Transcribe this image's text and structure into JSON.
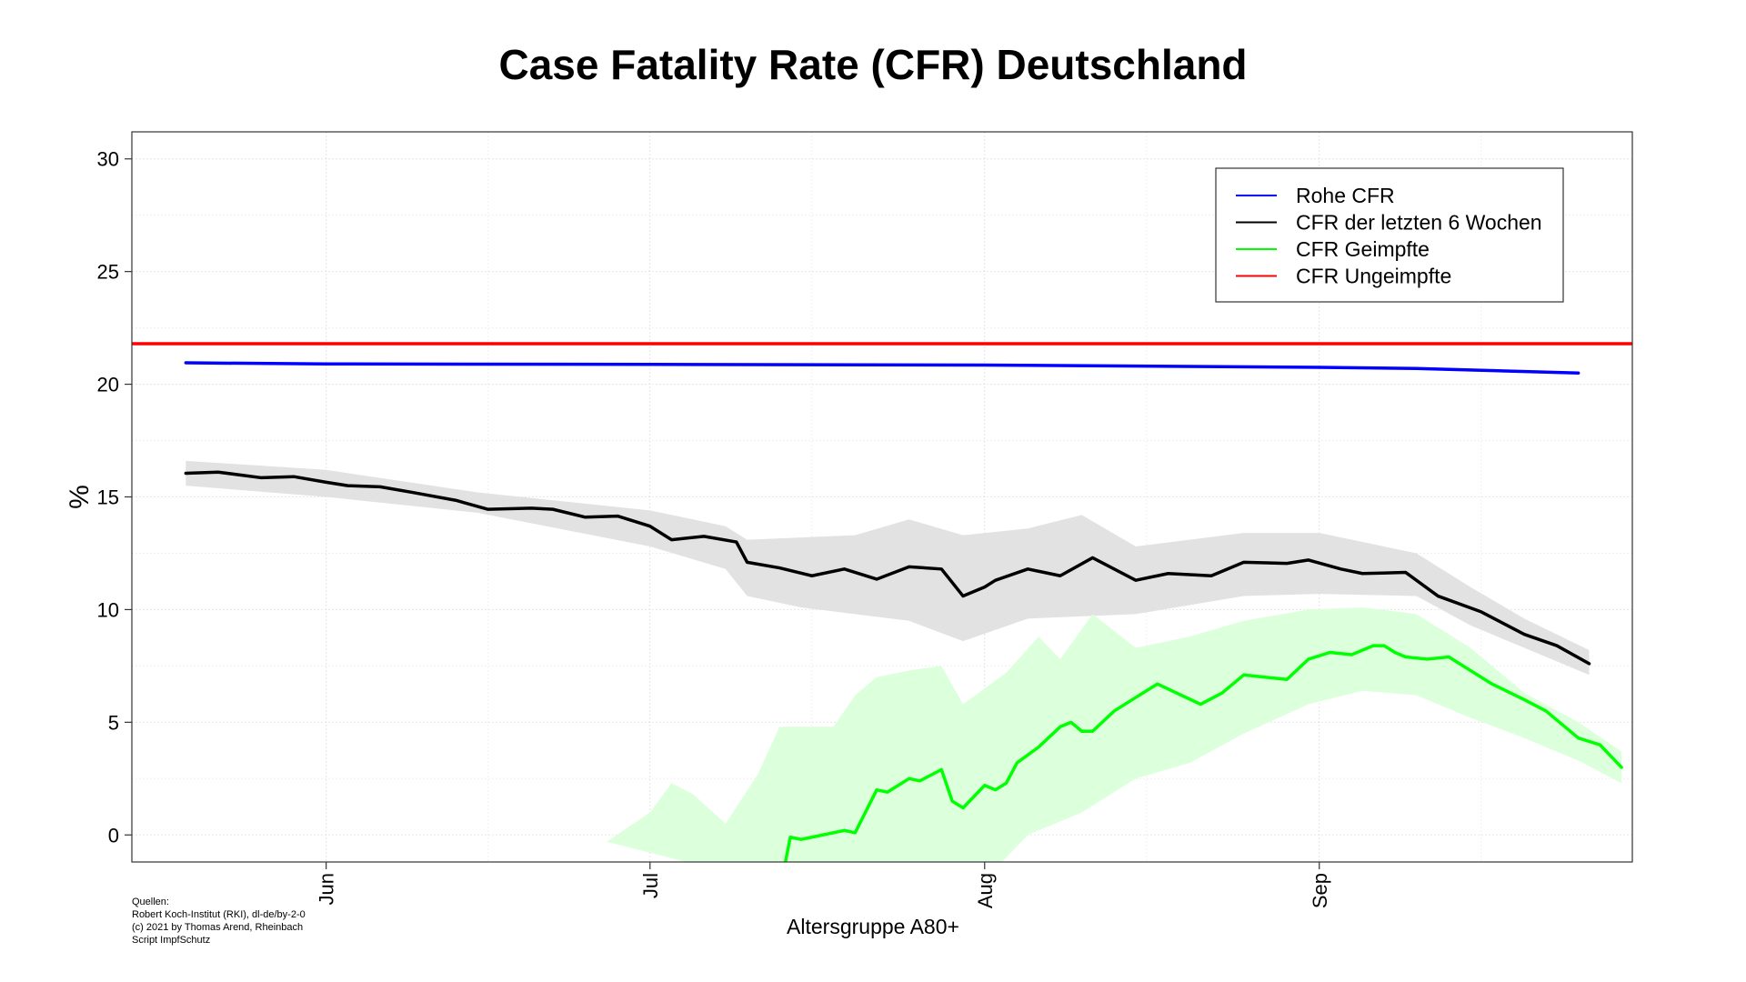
{
  "title": "Case Fatality Rate (CFR) Deutschland",
  "xlabel": "Altersgruppe A80+",
  "sources": [
    "Quellen:",
    "Robert Koch-Institut (RKI), dl-de/by-2-0",
    "(c) 2021 by Thomas Arend, Rheinbach",
    "Script ImpfSchutz"
  ],
  "chart_data": {
    "type": "line",
    "title": "Case Fatality Rate (CFR) Deutschland",
    "xlabel": "Altersgruppe A80+",
    "ylabel": "%",
    "x_axis": "date",
    "xlim": [
      "2021-05-14",
      "2021-09-30"
    ],
    "ylim": [
      -1.2,
      31.2
    ],
    "yticks": [
      0,
      5,
      10,
      15,
      20,
      25,
      30
    ],
    "xticks": [
      {
        "label": "Jun",
        "date": "2021-06-01"
      },
      {
        "label": "Jul",
        "date": "2021-07-01"
      },
      {
        "label": "Aug",
        "date": "2021-08-01"
      },
      {
        "label": "Sep",
        "date": "2021-09-01"
      }
    ],
    "grid": true,
    "legend_position": "top-right",
    "series": [
      {
        "name": "Rohe CFR",
        "color": "#0000ff",
        "points": [
          [
            "2021-05-19",
            20.95
          ],
          [
            "2021-06-01",
            20.9
          ],
          [
            "2021-07-01",
            20.88
          ],
          [
            "2021-08-01",
            20.85
          ],
          [
            "2021-09-01",
            20.75
          ],
          [
            "2021-09-10",
            20.7
          ],
          [
            "2021-09-25",
            20.5
          ]
        ]
      },
      {
        "name": "CFR der letzten 6 Wochen",
        "color": "#000000",
        "band_color": "#e2e2e2",
        "points": [
          [
            "2021-05-19",
            16.05
          ],
          [
            "2021-05-22",
            16.1
          ],
          [
            "2021-05-26",
            15.85
          ],
          [
            "2021-05-29",
            15.9
          ],
          [
            "2021-06-01",
            15.65
          ],
          [
            "2021-06-03",
            15.5
          ],
          [
            "2021-06-06",
            15.45
          ],
          [
            "2021-06-09",
            15.2
          ],
          [
            "2021-06-13",
            14.85
          ],
          [
            "2021-06-16",
            14.45
          ],
          [
            "2021-06-20",
            14.5
          ],
          [
            "2021-06-22",
            14.45
          ],
          [
            "2021-06-25",
            14.1
          ],
          [
            "2021-06-28",
            14.15
          ],
          [
            "2021-07-01",
            13.7
          ],
          [
            "2021-07-03",
            13.1
          ],
          [
            "2021-07-06",
            13.25
          ],
          [
            "2021-07-09",
            13.0
          ],
          [
            "2021-07-10",
            12.1
          ],
          [
            "2021-07-13",
            11.85
          ],
          [
            "2021-07-16",
            11.5
          ],
          [
            "2021-07-19",
            11.8
          ],
          [
            "2021-07-22",
            11.35
          ],
          [
            "2021-07-25",
            11.9
          ],
          [
            "2021-07-28",
            11.8
          ],
          [
            "2021-07-30",
            10.6
          ],
          [
            "2021-08-01",
            11.0
          ],
          [
            "2021-08-02",
            11.3
          ],
          [
            "2021-08-05",
            11.8
          ],
          [
            "2021-08-08",
            11.5
          ],
          [
            "2021-08-11",
            12.3
          ],
          [
            "2021-08-15",
            11.3
          ],
          [
            "2021-08-18",
            11.6
          ],
          [
            "2021-08-22",
            11.5
          ],
          [
            "2021-08-25",
            12.1
          ],
          [
            "2021-08-29",
            12.05
          ],
          [
            "2021-08-31",
            12.2
          ],
          [
            "2021-09-03",
            11.8
          ],
          [
            "2021-09-05",
            11.6
          ],
          [
            "2021-09-09",
            11.65
          ],
          [
            "2021-09-12",
            10.6
          ],
          [
            "2021-09-16",
            9.9
          ],
          [
            "2021-09-20",
            8.9
          ],
          [
            "2021-09-23",
            8.4
          ],
          [
            "2021-09-26",
            7.6
          ]
        ],
        "band_lower": [
          [
            "2021-05-19",
            15.5
          ],
          [
            "2021-06-01",
            15.0
          ],
          [
            "2021-06-15",
            14.3
          ],
          [
            "2021-07-01",
            12.8
          ],
          [
            "2021-07-08",
            11.8
          ],
          [
            "2021-07-10",
            10.6
          ],
          [
            "2021-07-15",
            10.1
          ],
          [
            "2021-07-25",
            9.5
          ],
          [
            "2021-07-30",
            8.6
          ],
          [
            "2021-08-05",
            9.6
          ],
          [
            "2021-08-15",
            9.8
          ],
          [
            "2021-08-25",
            10.6
          ],
          [
            "2021-09-01",
            10.7
          ],
          [
            "2021-09-10",
            10.6
          ],
          [
            "2021-09-15",
            9.3
          ],
          [
            "2021-09-20",
            8.3
          ],
          [
            "2021-09-26",
            7.1
          ]
        ],
        "band_upper": [
          [
            "2021-05-19",
            16.6
          ],
          [
            "2021-06-01",
            16.2
          ],
          [
            "2021-06-15",
            15.2
          ],
          [
            "2021-07-01",
            14.4
          ],
          [
            "2021-07-08",
            13.7
          ],
          [
            "2021-07-10",
            13.1
          ],
          [
            "2021-07-20",
            13.3
          ],
          [
            "2021-07-25",
            14.0
          ],
          [
            "2021-07-30",
            13.3
          ],
          [
            "2021-08-05",
            13.6
          ],
          [
            "2021-08-10",
            14.2
          ],
          [
            "2021-08-15",
            12.8
          ],
          [
            "2021-08-25",
            13.4
          ],
          [
            "2021-09-01",
            13.4
          ],
          [
            "2021-09-10",
            12.5
          ],
          [
            "2021-09-15",
            11.0
          ],
          [
            "2021-09-20",
            9.6
          ],
          [
            "2021-09-26",
            8.2
          ]
        ]
      },
      {
        "name": "CFR Geimpfte",
        "color": "#00ff00",
        "band_color": "#dcffdc",
        "points": [
          [
            "2021-07-13",
            -2.5
          ],
          [
            "2021-07-14",
            -0.1
          ],
          [
            "2021-07-15",
            -0.2
          ],
          [
            "2021-07-19",
            0.2
          ],
          [
            "2021-07-20",
            0.1
          ],
          [
            "2021-07-22",
            2.0
          ],
          [
            "2021-07-23",
            1.9
          ],
          [
            "2021-07-25",
            2.5
          ],
          [
            "2021-07-26",
            2.4
          ],
          [
            "2021-07-28",
            2.9
          ],
          [
            "2021-07-29",
            1.5
          ],
          [
            "2021-07-30",
            1.2
          ],
          [
            "2021-08-01",
            2.2
          ],
          [
            "2021-08-02",
            2.0
          ],
          [
            "2021-08-03",
            2.3
          ],
          [
            "2021-08-04",
            3.2
          ],
          [
            "2021-08-06",
            3.9
          ],
          [
            "2021-08-08",
            4.8
          ],
          [
            "2021-08-09",
            5.0
          ],
          [
            "2021-08-10",
            4.6
          ],
          [
            "2021-08-11",
            4.6
          ],
          [
            "2021-08-13",
            5.5
          ],
          [
            "2021-08-15",
            6.1
          ],
          [
            "2021-08-17",
            6.7
          ],
          [
            "2021-08-21",
            5.8
          ],
          [
            "2021-08-23",
            6.3
          ],
          [
            "2021-08-25",
            7.1
          ],
          [
            "2021-08-29",
            6.9
          ],
          [
            "2021-08-31",
            7.8
          ],
          [
            "2021-09-02",
            8.1
          ],
          [
            "2021-09-04",
            8.0
          ],
          [
            "2021-09-06",
            8.4
          ],
          [
            "2021-09-07",
            8.4
          ],
          [
            "2021-09-08",
            8.1
          ],
          [
            "2021-09-09",
            7.9
          ],
          [
            "2021-09-11",
            7.8
          ],
          [
            "2021-09-13",
            7.9
          ],
          [
            "2021-09-17",
            6.7
          ],
          [
            "2021-09-20",
            6.0
          ],
          [
            "2021-09-22",
            5.5
          ],
          [
            "2021-09-25",
            4.3
          ],
          [
            "2021-09-27",
            4.0
          ],
          [
            "2021-09-29",
            3.0
          ]
        ],
        "band_lower": [
          [
            "2021-07-15",
            -2.5
          ],
          [
            "2021-07-25",
            -2.5
          ],
          [
            "2021-08-01",
            -2.0
          ],
          [
            "2021-08-05",
            0.0
          ],
          [
            "2021-08-10",
            1.0
          ],
          [
            "2021-08-15",
            2.5
          ],
          [
            "2021-08-20",
            3.2
          ],
          [
            "2021-08-25",
            4.5
          ],
          [
            "2021-08-31",
            5.8
          ],
          [
            "2021-09-05",
            6.4
          ],
          [
            "2021-09-10",
            6.2
          ],
          [
            "2021-09-15",
            5.2
          ],
          [
            "2021-09-20",
            4.3
          ],
          [
            "2021-09-25",
            3.3
          ],
          [
            "2021-09-29",
            2.3
          ]
        ],
        "band_upper": [
          [
            "2021-06-27",
            -0.3
          ],
          [
            "2021-07-01",
            1.0
          ],
          [
            "2021-07-03",
            2.3
          ],
          [
            "2021-07-05",
            1.8
          ],
          [
            "2021-07-08",
            0.5
          ],
          [
            "2021-07-11",
            2.7
          ],
          [
            "2021-07-13",
            4.8
          ],
          [
            "2021-07-18",
            4.8
          ],
          [
            "2021-07-20",
            6.2
          ],
          [
            "2021-07-22",
            7.0
          ],
          [
            "2021-07-25",
            7.3
          ],
          [
            "2021-07-28",
            7.5
          ],
          [
            "2021-07-30",
            5.8
          ],
          [
            "2021-08-03",
            7.2
          ],
          [
            "2021-08-06",
            8.8
          ],
          [
            "2021-08-08",
            7.8
          ],
          [
            "2021-08-11",
            9.8
          ],
          [
            "2021-08-15",
            8.3
          ],
          [
            "2021-08-20",
            8.8
          ],
          [
            "2021-08-25",
            9.5
          ],
          [
            "2021-08-31",
            10.0
          ],
          [
            "2021-09-05",
            10.1
          ],
          [
            "2021-09-10",
            9.8
          ],
          [
            "2021-09-15",
            8.3
          ],
          [
            "2021-09-20",
            6.3
          ],
          [
            "2021-09-25",
            5.0
          ],
          [
            "2021-09-29",
            3.7
          ]
        ]
      },
      {
        "name": "CFR Ungeimpfte",
        "color": "#ff0000",
        "points": [
          [
            "2021-05-14",
            21.8
          ],
          [
            "2021-09-30",
            21.8
          ]
        ]
      }
    ]
  }
}
